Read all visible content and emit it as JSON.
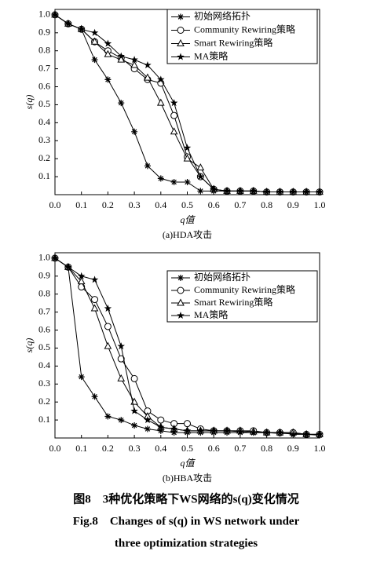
{
  "chart_data": [
    {
      "type": "line",
      "subtitle": "(a)HDA攻击",
      "x_label": "q值",
      "y_label": "s(q)",
      "x": [
        0,
        0.05,
        0.1,
        0.15,
        0.2,
        0.25,
        0.3,
        0.35,
        0.4,
        0.45,
        0.5,
        0.55,
        0.6,
        0.65,
        0.7,
        0.75,
        0.8,
        0.85,
        0.9,
        0.95,
        1.0
      ],
      "xlim": [
        0,
        1.0
      ],
      "ylim": [
        0,
        1.03
      ],
      "xticks": [
        {
          "value": 0,
          "label": "0.0"
        },
        0.1,
        0.2,
        0.3,
        0.4,
        0.5,
        0.6,
        0.7,
        0.8,
        0.9,
        {
          "value": 1,
          "label": "1.0"
        }
      ],
      "yticks": [
        0.1,
        0.2,
        0.3,
        0.4,
        0.5,
        0.6,
        0.7,
        0.8,
        0.9,
        {
          "value": 1,
          "label": "1.0"
        }
      ],
      "legend": "upper right",
      "grid": false,
      "series": [
        {
          "name": "初始网络拓扑",
          "color": "#000000",
          "marker": "asterisk",
          "values": [
            1.0,
            0.95,
            0.92,
            0.75,
            0.64,
            0.51,
            0.35,
            0.16,
            0.09,
            0.07,
            0.07,
            0.02,
            0.02,
            0.02,
            0.02,
            0.02,
            0.015,
            0.015,
            0.015,
            0.015,
            0.015
          ]
        },
        {
          "name": "Community Rewiring策略",
          "color": "#000000",
          "marker": "circle",
          "values": [
            1.0,
            0.95,
            0.92,
            0.85,
            0.8,
            0.76,
            0.7,
            0.64,
            0.62,
            0.44,
            0.21,
            0.1,
            0.03,
            0.02,
            0.02,
            0.02,
            0.015,
            0.015,
            0.015,
            0.015,
            0.015
          ]
        },
        {
          "name": "Smart Rewiring策略",
          "color": "#000000",
          "marker": "triangle",
          "values": [
            1.0,
            0.95,
            0.92,
            0.85,
            0.78,
            0.75,
            0.72,
            0.65,
            0.51,
            0.35,
            0.2,
            0.15,
            0.03,
            0.02,
            0.02,
            0.02,
            0.015,
            0.015,
            0.015,
            0.015,
            0.015
          ]
        },
        {
          "name": "MA策略",
          "color": "#000000",
          "marker": "star",
          "values": [
            1.0,
            0.95,
            0.92,
            0.9,
            0.84,
            0.77,
            0.75,
            0.72,
            0.64,
            0.51,
            0.26,
            0.1,
            0.03,
            0.02,
            0.02,
            0.02,
            0.015,
            0.015,
            0.015,
            0.015,
            0.015
          ]
        }
      ]
    },
    {
      "type": "line",
      "subtitle": "(b)HBA攻击",
      "x_label": "q值",
      "y_label": "s(q)",
      "x": [
        0,
        0.05,
        0.1,
        0.15,
        0.2,
        0.25,
        0.3,
        0.35,
        0.4,
        0.45,
        0.5,
        0.55,
        0.6,
        0.65,
        0.7,
        0.75,
        0.8,
        0.85,
        0.9,
        0.95,
        1.0
      ],
      "xlim": [
        0,
        1.0
      ],
      "ylim": [
        0,
        1.03
      ],
      "xticks": [
        {
          "value": 0,
          "label": "0.0"
        },
        0.1,
        0.2,
        0.3,
        0.4,
        0.5,
        0.6,
        0.7,
        0.8,
        0.9,
        {
          "value": 1,
          "label": "1.0"
        }
      ],
      "yticks": [
        0.1,
        0.2,
        0.3,
        0.4,
        0.5,
        0.6,
        0.7,
        0.8,
        0.9,
        {
          "value": 1,
          "label": "1.0"
        }
      ],
      "legend": "upper right",
      "grid": false,
      "series": [
        {
          "name": "初始网络拓扑",
          "color": "#000000",
          "marker": "asterisk",
          "values": [
            1.0,
            0.95,
            0.34,
            0.23,
            0.12,
            0.1,
            0.07,
            0.05,
            0.04,
            0.03,
            0.03,
            0.03,
            0.03,
            0.03,
            0.03,
            0.03,
            0.03,
            0.025,
            0.025,
            0.02,
            0.015
          ]
        },
        {
          "name": "Community Rewiring策略",
          "color": "#000000",
          "marker": "circle",
          "values": [
            1.0,
            0.95,
            0.84,
            0.77,
            0.62,
            0.44,
            0.33,
            0.15,
            0.1,
            0.08,
            0.08,
            0.05,
            0.04,
            0.04,
            0.04,
            0.04,
            0.03,
            0.03,
            0.03,
            0.02,
            0.02
          ]
        },
        {
          "name": "Smart Rewiring策略",
          "color": "#000000",
          "marker": "triangle",
          "values": [
            1.0,
            0.95,
            0.87,
            0.72,
            0.51,
            0.33,
            0.2,
            0.12,
            0.06,
            0.05,
            0.04,
            0.04,
            0.04,
            0.04,
            0.04,
            0.035,
            0.03,
            0.03,
            0.03,
            0.02,
            0.02
          ]
        },
        {
          "name": "MA策略",
          "color": "#000000",
          "marker": "star",
          "values": [
            1.0,
            0.95,
            0.9,
            0.88,
            0.72,
            0.51,
            0.15,
            0.1,
            0.06,
            0.05,
            0.04,
            0.04,
            0.04,
            0.04,
            0.035,
            0.03,
            0.03,
            0.03,
            0.02,
            0.02,
            0.02
          ]
        }
      ]
    }
  ],
  "figure": {
    "caption_cn": "图8　3种优化策略下WS网络的s(q)变化情况",
    "caption_en": [
      "Fig.8　Changes of s(q) in WS network under",
      "three optimization strategies"
    ]
  }
}
